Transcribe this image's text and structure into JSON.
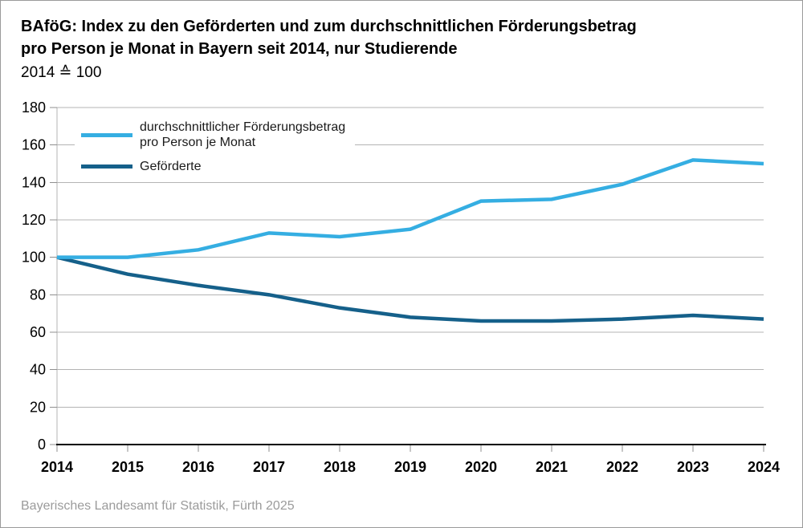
{
  "title": {
    "line1": "BAföG: Index zu den Geförderten und zum durchschnittlichen Förderungsbetrag",
    "line2": "pro Person je Monat in Bayern seit 2014, nur Studierende",
    "subtitle": "2014 ≙ 100"
  },
  "legend": {
    "items": [
      {
        "label": "durchschnittlicher Förderungsbetrag\npro Person je Monat",
        "color": "#35AEE2"
      },
      {
        "label": "Geförderte",
        "color": "#15608A"
      }
    ]
  },
  "footer": {
    "source": "Bayerisches Landesamt für Statistik, Fürth 2025"
  },
  "colors": {
    "series_light_blue": "#35AEE2",
    "series_dark_blue": "#15608A",
    "gridline": "#b4b4b4",
    "tick": "#8f8f8f",
    "x_axis": "#000000",
    "footer_text": "#9b9b9b"
  },
  "chart_data": {
    "type": "line",
    "x": [
      2014,
      2015,
      2016,
      2017,
      2018,
      2019,
      2020,
      2021,
      2022,
      2023,
      2024
    ],
    "series": [
      {
        "name": "durchschnittlicher Förderungsbetrag pro Person je Monat",
        "color": "#35AEE2",
        "values": [
          100,
          100,
          104,
          113,
          111,
          115,
          130,
          131,
          139,
          152,
          150
        ]
      },
      {
        "name": "Geförderte",
        "color": "#15608A",
        "values": [
          100,
          91,
          85,
          80,
          73,
          68,
          66,
          66,
          67,
          69,
          67
        ]
      }
    ],
    "title": "BAföG: Index zu den Geförderten und zum durchschnittlichen Förderungsbetrag pro Person je Monat in Bayern seit 2014, nur Studierende",
    "subtitle": "2014 ≙ 100",
    "xlabel": "",
    "ylabel": "",
    "ylim": [
      0,
      180
    ],
    "ytick_step": 20,
    "grid": true,
    "legend_position": "top-left"
  }
}
